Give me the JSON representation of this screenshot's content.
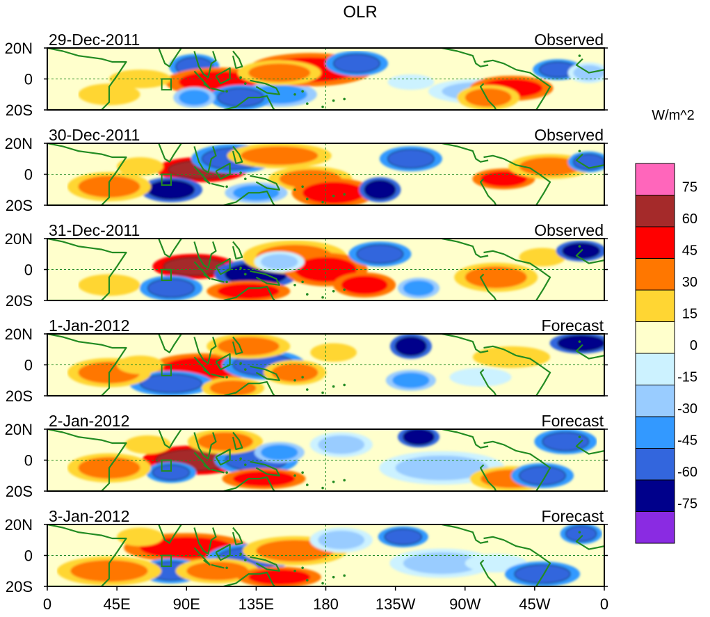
{
  "chart_data": {
    "type": "heatmap",
    "title": "OLR",
    "colorbar": {
      "title": "W/m^2",
      "levels": [
        75,
        60,
        45,
        30,
        15,
        0,
        -15,
        -30,
        -45,
        -60,
        -75
      ],
      "colors": [
        "#ff66bb",
        "#a52a2a",
        "#ff0000",
        "#ff7700",
        "#ffd633",
        "#ffffcc",
        "#ccf2ff",
        "#99ccff",
        "#3399ff",
        "#3366dd",
        "#00008b",
        "#8a2be2"
      ]
    },
    "x_ticks": [
      "0",
      "45E",
      "90E",
      "135E",
      "180",
      "135W",
      "90W",
      "45W",
      "0"
    ],
    "y_ticks": [
      "20N",
      "0",
      "20S"
    ],
    "xlim": [
      0,
      360
    ],
    "ylim": [
      -20,
      20
    ],
    "panels": [
      {
        "date": "29-Dec-2011",
        "kind": "Observed"
      },
      {
        "date": "30-Dec-2011",
        "kind": "Observed"
      },
      {
        "date": "31-Dec-2011",
        "kind": "Observed"
      },
      {
        "date": "1-Jan-2012",
        "kind": "Forecast"
      },
      {
        "date": "2-Jan-2012",
        "kind": "Forecast"
      },
      {
        "date": "3-Jan-2012",
        "kind": "Forecast"
      }
    ],
    "blobs": [
      [
        [
          95,
          8,
          12,
          6,
          -60
        ],
        [
          110,
          -2,
          25,
          7,
          45
        ],
        [
          150,
          -10,
          18,
          6,
          -45
        ],
        [
          170,
          6,
          30,
          8,
          45
        ],
        [
          150,
          4,
          20,
          6,
          30
        ],
        [
          200,
          10,
          15,
          6,
          -60
        ],
        [
          235,
          -2,
          15,
          5,
          -15
        ],
        [
          280,
          -8,
          25,
          6,
          -30
        ],
        [
          300,
          -6,
          20,
          6,
          45
        ],
        [
          285,
          -12,
          15,
          6,
          30
        ],
        [
          330,
          6,
          12,
          5,
          -60
        ],
        [
          350,
          4,
          10,
          5,
          -30
        ],
        [
          40,
          -10,
          20,
          7,
          15
        ],
        [
          60,
          0,
          20,
          6,
          15
        ],
        [
          125,
          -12,
          15,
          6,
          -60
        ],
        [
          95,
          -12,
          10,
          5,
          -45
        ]
      ],
      [
        [
          100,
          3,
          22,
          6,
          60
        ],
        [
          80,
          -10,
          15,
          6,
          -75
        ],
        [
          120,
          10,
          20,
          7,
          -60
        ],
        [
          150,
          12,
          25,
          6,
          30
        ],
        [
          170,
          -3,
          20,
          6,
          30
        ],
        [
          185,
          -12,
          20,
          7,
          45
        ],
        [
          215,
          -10,
          10,
          6,
          -75
        ],
        [
          235,
          10,
          15,
          6,
          -60
        ],
        [
          295,
          -3,
          15,
          5,
          45
        ],
        [
          325,
          5,
          20,
          6,
          30
        ],
        [
          350,
          8,
          10,
          5,
          -60
        ],
        [
          40,
          -8,
          20,
          7,
          30
        ],
        [
          60,
          5,
          15,
          6,
          15
        ],
        [
          135,
          -12,
          15,
          5,
          -45
        ]
      ],
      [
        [
          95,
          2,
          20,
          6,
          60
        ],
        [
          80,
          -12,
          15,
          6,
          -60
        ],
        [
          135,
          -3,
          20,
          7,
          -75
        ],
        [
          160,
          8,
          25,
          8,
          30
        ],
        [
          180,
          0,
          20,
          8,
          45
        ],
        [
          205,
          -10,
          15,
          6,
          45
        ],
        [
          215,
          10,
          15,
          6,
          -60
        ],
        [
          240,
          -12,
          10,
          5,
          -45
        ],
        [
          290,
          -5,
          20,
          7,
          30
        ],
        [
          320,
          8,
          15,
          6,
          15
        ],
        [
          345,
          12,
          12,
          5,
          -75
        ],
        [
          40,
          -10,
          20,
          7,
          15
        ],
        [
          130,
          -14,
          20,
          5,
          45
        ],
        [
          150,
          5,
          12,
          5,
          -30
        ]
      ],
      [
        [
          100,
          -2,
          25,
          7,
          45
        ],
        [
          80,
          -12,
          20,
          6,
          -60
        ],
        [
          140,
          0,
          20,
          7,
          -60
        ],
        [
          130,
          12,
          20,
          6,
          30
        ],
        [
          160,
          -5,
          15,
          6,
          30
        ],
        [
          185,
          8,
          15,
          6,
          15
        ],
        [
          235,
          12,
          10,
          6,
          -75
        ],
        [
          235,
          -10,
          12,
          5,
          -45
        ],
        [
          280,
          -8,
          20,
          6,
          -15
        ],
        [
          300,
          5,
          25,
          7,
          15
        ],
        [
          345,
          14,
          15,
          5,
          -75
        ],
        [
          40,
          -5,
          20,
          7,
          30
        ],
        [
          120,
          -15,
          15,
          5,
          30
        ],
        [
          60,
          0,
          15,
          6,
          15
        ]
      ],
      [
        [
          95,
          0,
          25,
          7,
          60
        ],
        [
          80,
          -8,
          12,
          5,
          -60
        ],
        [
          135,
          0,
          20,
          7,
          -60
        ],
        [
          115,
          12,
          18,
          6,
          30
        ],
        [
          150,
          5,
          12,
          5,
          -45
        ],
        [
          190,
          10,
          15,
          6,
          -30
        ],
        [
          240,
          15,
          10,
          5,
          -75
        ],
        [
          255,
          -5,
          30,
          8,
          -30
        ],
        [
          300,
          -12,
          20,
          6,
          30
        ],
        [
          335,
          12,
          15,
          6,
          -60
        ],
        [
          320,
          -10,
          15,
          6,
          -60
        ],
        [
          40,
          -5,
          20,
          7,
          30
        ],
        [
          140,
          -12,
          20,
          5,
          45
        ],
        [
          65,
          10,
          15,
          6,
          15
        ]
      ],
      [
        [
          90,
          5,
          30,
          7,
          45
        ],
        [
          80,
          -10,
          15,
          6,
          -60
        ],
        [
          130,
          -2,
          20,
          7,
          -60
        ],
        [
          110,
          -10,
          20,
          6,
          30
        ],
        [
          160,
          3,
          25,
          7,
          30
        ],
        [
          190,
          10,
          15,
          6,
          -30
        ],
        [
          230,
          12,
          12,
          5,
          -60
        ],
        [
          255,
          -5,
          25,
          7,
          -30
        ],
        [
          290,
          -5,
          20,
          6,
          -15
        ],
        [
          320,
          -12,
          18,
          6,
          -60
        ],
        [
          345,
          14,
          10,
          5,
          -60
        ],
        [
          40,
          -10,
          25,
          7,
          30
        ],
        [
          150,
          -14,
          20,
          5,
          45
        ],
        [
          60,
          12,
          15,
          6,
          15
        ]
      ]
    ]
  }
}
